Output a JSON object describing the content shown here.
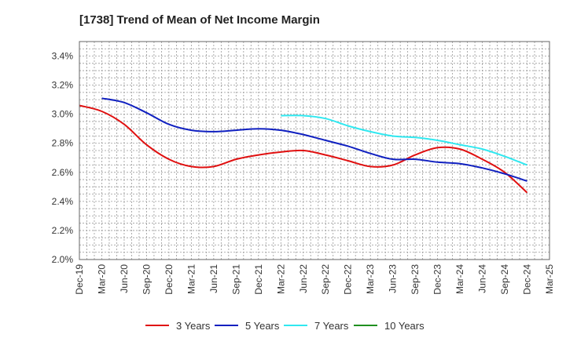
{
  "chart_data": {
    "type": "line",
    "title": "[1738]  Trend of Mean of Net Income Margin",
    "xlabel": "",
    "ylabel": "",
    "x": [
      "Dec-19",
      "Mar-20",
      "Jun-20",
      "Sep-20",
      "Dec-20",
      "Mar-21",
      "Jun-21",
      "Sep-21",
      "Dec-21",
      "Mar-22",
      "Jun-22",
      "Sep-22",
      "Dec-22",
      "Mar-23",
      "Jun-23",
      "Sep-23",
      "Dec-23",
      "Mar-24",
      "Jun-24",
      "Sep-24",
      "Dec-24",
      "Mar-25"
    ],
    "ylim": [
      2.0,
      3.5
    ],
    "yticks": [
      "2.0%",
      "2.2%",
      "2.4%",
      "2.6%",
      "2.8%",
      "3.0%",
      "3.2%",
      "3.4%"
    ],
    "grid": true,
    "legend_position": "bottom",
    "series": [
      {
        "name": "3 Years",
        "color": "#e01010",
        "values": [
          3.06,
          3.02,
          2.93,
          2.79,
          2.69,
          2.64,
          2.64,
          2.69,
          2.72,
          2.74,
          2.75,
          2.72,
          2.68,
          2.64,
          2.65,
          2.72,
          2.77,
          2.76,
          2.69,
          2.6,
          2.46,
          null
        ]
      },
      {
        "name": "5 Years",
        "color": "#1020c0",
        "values": [
          null,
          3.11,
          3.08,
          3.01,
          2.93,
          2.89,
          2.88,
          2.89,
          2.9,
          2.89,
          2.86,
          2.82,
          2.78,
          2.73,
          2.69,
          2.69,
          2.67,
          2.66,
          2.63,
          2.59,
          2.54,
          null
        ]
      },
      {
        "name": "7 Years",
        "color": "#30e8f0",
        "values": [
          null,
          null,
          null,
          null,
          null,
          null,
          null,
          null,
          null,
          2.99,
          2.99,
          2.97,
          2.92,
          2.88,
          2.85,
          2.84,
          2.82,
          2.79,
          2.76,
          2.71,
          2.65,
          null
        ]
      },
      {
        "name": "10 Years",
        "color": "#209020",
        "values": [
          null,
          null,
          null,
          null,
          null,
          null,
          null,
          null,
          null,
          null,
          null,
          null,
          null,
          null,
          null,
          null,
          null,
          null,
          null,
          null,
          null,
          null
        ]
      }
    ]
  }
}
